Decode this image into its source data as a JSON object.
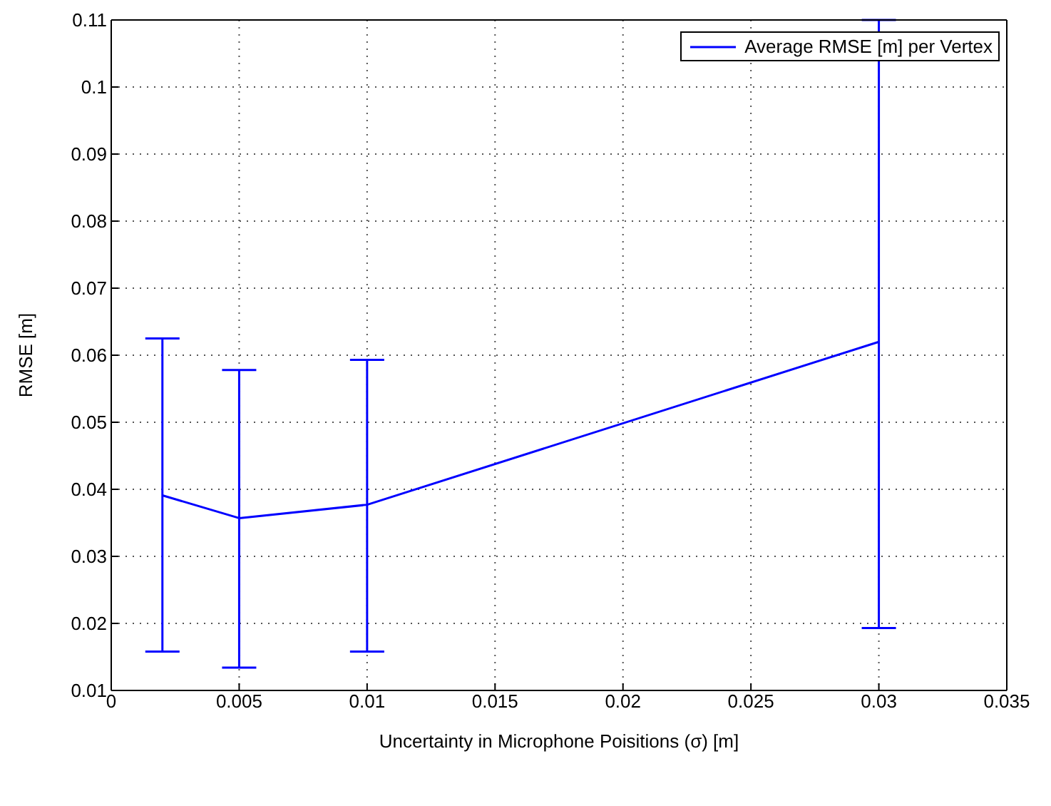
{
  "chart_data": {
    "type": "line",
    "xlabel": "Uncertainty in Microphone Poisitions (σ) [m]",
    "ylabel": "RMSE [m]",
    "x": [
      0.002,
      0.005,
      0.01,
      0.03
    ],
    "series": [
      {
        "name": "Average RMSE [m] per Vertex",
        "color": "#0000ff",
        "values": [
          0.0391,
          0.0357,
          0.0377,
          0.062
        ],
        "errors": [
          [
            0.0158,
            0.0625
          ],
          [
            0.0134,
            0.0578
          ],
          [
            0.0158,
            0.0593
          ],
          [
            0.0193,
            0.11
          ]
        ]
      }
    ],
    "xlim": [
      0,
      0.035
    ],
    "xticks": [
      0,
      0.005,
      0.01,
      0.015,
      0.02,
      0.025,
      0.03,
      0.035
    ],
    "ylim": [
      0.01,
      0.11
    ],
    "yticks": [
      0.01,
      0.02,
      0.03,
      0.04,
      0.05,
      0.06,
      0.07,
      0.08,
      0.09,
      0.1,
      0.11
    ],
    "grid": true,
    "legend": "top right",
    "marker": "none",
    "line_style": "solid"
  }
}
